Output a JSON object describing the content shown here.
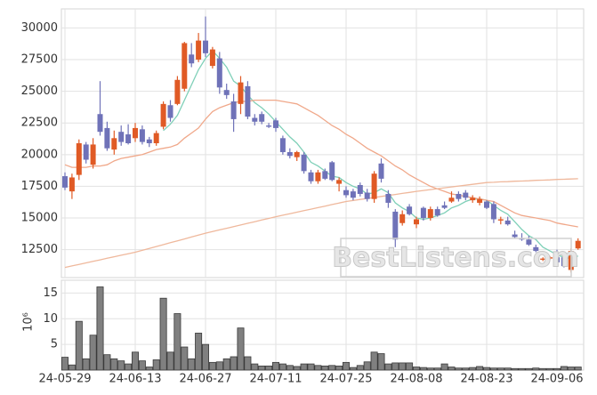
{
  "chart_data": [
    {
      "type": "candlestick",
      "up_color": "#e05a25",
      "down_color": "#6f72b8",
      "open": [
        18300,
        17100,
        18400,
        20800,
        19200,
        23200,
        22100,
        20400,
        21800,
        21600,
        21300,
        22000,
        21200,
        20900,
        22200,
        23900,
        24000,
        25200,
        27900,
        27500,
        29000,
        27000,
        27600,
        25100,
        24200,
        24000,
        25400,
        22900,
        23200,
        22300,
        22700,
        21300,
        20200,
        19800,
        20000,
        18600,
        17900,
        18700,
        19400,
        17700,
        17200,
        17100,
        17600,
        17000,
        16500,
        19300,
        16900,
        15500,
        14600,
        15900,
        14500,
        15800,
        15000,
        15700,
        16000,
        16300,
        16900,
        17000,
        16400,
        16200,
        16300,
        16100,
        14800,
        14800,
        13700,
        13400,
        13300,
        12700,
        11700,
        11800,
        11900,
        11900,
        10900,
        12600
      ],
      "high": [
        18600,
        18500,
        21200,
        21000,
        21300,
        25800,
        22600,
        21900,
        22300,
        22400,
        22500,
        22300,
        21400,
        21900,
        24200,
        24300,
        26200,
        28900,
        28800,
        29600,
        30900,
        28500,
        28100,
        25600,
        24800,
        26200,
        25800,
        23200,
        23400,
        22500,
        22900,
        21500,
        20500,
        20300,
        20200,
        18800,
        18800,
        18900,
        19500,
        18200,
        17500,
        17300,
        17800,
        17300,
        18700,
        19700,
        17200,
        15700,
        15600,
        16100,
        15100,
        15900,
        15900,
        15900,
        16300,
        17100,
        17100,
        17200,
        16800,
        16700,
        16400,
        16300,
        15100,
        15100,
        14000,
        13800,
        13600,
        12900,
        11900,
        12000,
        12500,
        12000,
        12600,
        13400
      ],
      "low": [
        17200,
        16500,
        18000,
        19300,
        18900,
        21500,
        20300,
        20000,
        20700,
        20800,
        21000,
        20800,
        20600,
        20700,
        22000,
        22600,
        23900,
        25000,
        26900,
        27300,
        27700,
        26800,
        24800,
        24400,
        21800,
        23200,
        22800,
        22300,
        22400,
        22100,
        21800,
        20000,
        19700,
        19500,
        18500,
        17700,
        17700,
        18000,
        17900,
        17100,
        16600,
        16400,
        16700,
        16300,
        16200,
        17800,
        15800,
        12700,
        14400,
        15200,
        14200,
        14800,
        14800,
        15100,
        15700,
        16200,
        16300,
        16400,
        16200,
        16000,
        15700,
        14600,
        14500,
        14400,
        13400,
        13200,
        12800,
        12300,
        11600,
        11700,
        11400,
        11100,
        10700,
        12500
      ],
      "close": [
        17400,
        18200,
        20900,
        19600,
        20800,
        21800,
        20500,
        21300,
        21000,
        20900,
        22100,
        21000,
        20900,
        21700,
        24000,
        22900,
        25900,
        28800,
        27200,
        29000,
        28000,
        28300,
        25300,
        24700,
        22800,
        25700,
        23000,
        22600,
        22600,
        22200,
        22100,
        20200,
        19900,
        20200,
        18700,
        17900,
        18600,
        18100,
        18000,
        18000,
        16800,
        16600,
        16900,
        16500,
        18500,
        18100,
        16200,
        13300,
        15300,
        15300,
        14900,
        15000,
        15700,
        15200,
        15800,
        16600,
        16500,
        16600,
        16600,
        16500,
        15800,
        14900,
        14900,
        14500,
        13500,
        13300,
        12900,
        12400,
        11800,
        11900,
        11500,
        11200,
        12400,
        13200
      ],
      "lines": [
        {
          "color": "#7fd0b8",
          "values": [
            null,
            null,
            null,
            null,
            null,
            null,
            null,
            null,
            null,
            null,
            null,
            null,
            null,
            null,
            21900,
            22400,
            23100,
            24300,
            25500,
            26700,
            27600,
            28200,
            27600,
            26900,
            25800,
            25400,
            24700,
            24100,
            23700,
            23200,
            22600,
            22000,
            21400,
            20900,
            20200,
            19400,
            19100,
            18700,
            18300,
            18200,
            17800,
            17500,
            17300,
            16900,
            17000,
            17300,
            17000,
            16200,
            15800,
            15500,
            15000,
            14900,
            15000,
            15200,
            15400,
            15800,
            16000,
            16300,
            16500,
            16500,
            16400,
            16000,
            15600,
            15300,
            14700,
            14100,
            13600,
            13300,
            12700,
            12400,
            12100,
            11900,
            11800,
            12000
          ]
        },
        {
          "color": "#f0a88a",
          "values": [
            19200,
            19000,
            19000,
            19000,
            19100,
            19100,
            19200,
            19500,
            19700,
            19800,
            19900,
            20000,
            20200,
            20400,
            20500,
            20600,
            20800,
            21300,
            21700,
            22100,
            22800,
            23400,
            23700,
            23900,
            24100,
            24200,
            24200,
            24300,
            24300,
            24300,
            24300,
            24200,
            24100,
            24000,
            23700,
            23400,
            23100,
            22700,
            22300,
            22000,
            21600,
            21300,
            20900,
            20500,
            20200,
            19900,
            19500,
            19100,
            18800,
            18400,
            18100,
            17800,
            17500,
            17300,
            17100,
            16900,
            16800,
            16700,
            16600,
            16500,
            16400,
            16300,
            16000,
            15700,
            15400,
            15200,
            15100,
            15000,
            14900,
            14800,
            14600,
            14500,
            14400,
            14300
          ]
        },
        {
          "color": "#efb89c",
          "values": [
            11100,
            11220,
            11340,
            11460,
            11580,
            11700,
            11820,
            11940,
            12060,
            12180,
            12300,
            12450,
            12600,
            12750,
            12900,
            13050,
            13200,
            13350,
            13500,
            13650,
            13800,
            13930,
            14060,
            14190,
            14320,
            14450,
            14580,
            14710,
            14840,
            14970,
            15100,
            15220,
            15340,
            15460,
            15580,
            15700,
            15820,
            15940,
            16060,
            16180,
            16300,
            16380,
            16460,
            16540,
            16620,
            16700,
            16780,
            16860,
            16940,
            17020,
            17100,
            17170,
            17240,
            17310,
            17380,
            17450,
            17520,
            17590,
            17660,
            17730,
            17800,
            17820,
            17850,
            17870,
            17900,
            17920,
            17940,
            17970,
            17990,
            18010,
            18040,
            18060,
            18080,
            18100
          ]
        }
      ],
      "ylim": [
        10300,
        31500
      ],
      "yticks": [
        12500,
        15000,
        17500,
        20000,
        22500,
        25000,
        27500,
        30000
      ],
      "grid": true,
      "watermark": "BestListens.com"
    },
    {
      "type": "bar",
      "y_unit": "10⁶",
      "color": "#808080",
      "categories": [
        "24-05-29",
        null,
        null,
        null,
        null,
        null,
        null,
        null,
        null,
        null,
        "24-06-13",
        null,
        null,
        null,
        null,
        null,
        null,
        null,
        null,
        null,
        "24-06-27",
        null,
        null,
        null,
        null,
        null,
        null,
        null,
        null,
        null,
        "24-07-11",
        null,
        null,
        null,
        null,
        null,
        null,
        null,
        null,
        null,
        "24-07-25",
        null,
        null,
        null,
        null,
        null,
        null,
        null,
        null,
        null,
        "24-08-08",
        null,
        null,
        null,
        null,
        null,
        null,
        null,
        null,
        null,
        "24-08-23",
        null,
        null,
        null,
        null,
        null,
        null,
        null,
        null,
        null,
        "24-09-06",
        null,
        null,
        null
      ],
      "values": [
        2.5,
        1,
        9.5,
        2.2,
        6.8,
        16.2,
        3,
        2.2,
        1.8,
        1.2,
        3.5,
        1.8,
        0.6,
        2,
        14,
        3.5,
        11,
        4.5,
        2.2,
        7.2,
        5,
        1.5,
        1.6,
        2.2,
        2.6,
        8.2,
        2.6,
        1.2,
        0.8,
        0.8,
        1.5,
        1.2,
        0.9,
        0.7,
        1.2,
        1.2,
        0.9,
        0.8,
        0.9,
        0.8,
        1.5,
        0.5,
        0.9,
        1.6,
        3.5,
        3.2,
        1.2,
        1.4,
        1.4,
        1.4,
        0.6,
        0.5,
        0.4,
        0.4,
        1.2,
        0.6,
        0.4,
        0.4,
        0.5,
        0.7,
        0.5,
        0.4,
        0.4,
        0.4,
        0.3,
        0.3,
        0.3,
        0.4,
        0.3,
        0.3,
        0.3,
        0.7,
        0.6,
        0.6
      ],
      "ylim": [
        0,
        17.5
      ],
      "yticks": [
        5,
        10,
        15
      ],
      "grid": true
    }
  ]
}
